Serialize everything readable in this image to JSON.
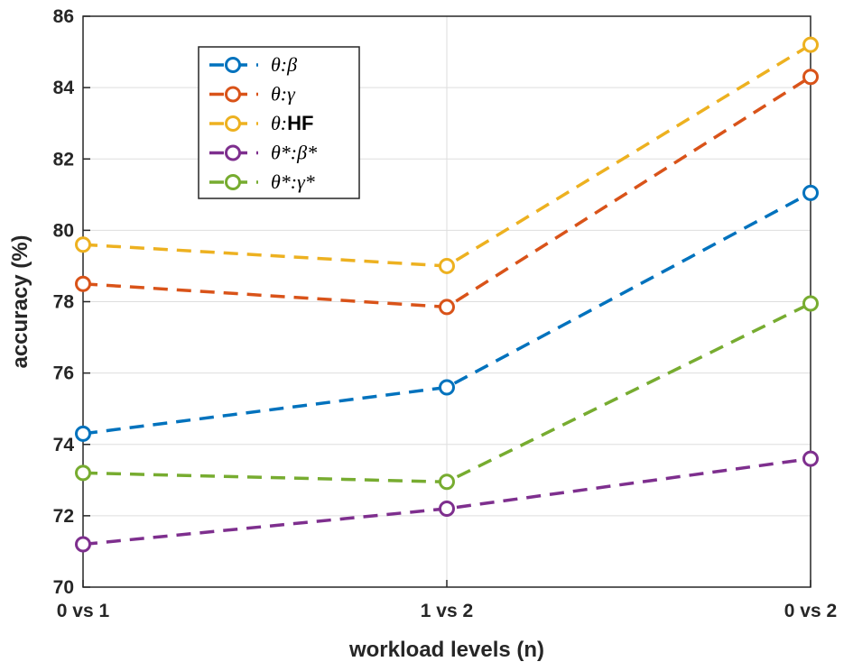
{
  "chart_data": {
    "type": "line",
    "categories": [
      "0 vs 1",
      "1 vs 2",
      "0 vs 2"
    ],
    "xlabel": "workload levels (n)",
    "ylabel": "accuracy (%)",
    "ylim": [
      70,
      86
    ],
    "yticks": [
      70,
      72,
      74,
      76,
      78,
      80,
      82,
      84,
      86
    ],
    "grid": true,
    "legend_position": "top-left",
    "series": [
      {
        "name": "θ:β",
        "legend": [
          {
            "t": "θ:β"
          }
        ],
        "color": "#0072BD",
        "values": [
          74.3,
          75.6,
          81.05
        ]
      },
      {
        "name": "θ:γ",
        "legend": [
          {
            "t": "θ:γ"
          }
        ],
        "color": "#D95319",
        "values": [
          78.5,
          77.85,
          84.3
        ]
      },
      {
        "name": "θ:HF",
        "legend": [
          {
            "t": "θ:"
          },
          {
            "t": "HF",
            "plain": true
          }
        ],
        "color": "#EDB120",
        "values": [
          79.6,
          79.0,
          85.2
        ]
      },
      {
        "name": "θ*:β*",
        "legend": [
          {
            "t": "θ*:β*"
          }
        ],
        "color": "#7E2F8E",
        "values": [
          71.2,
          72.2,
          73.6
        ]
      },
      {
        "name": "θ*:γ*",
        "legend": [
          {
            "t": "θ*:γ*"
          }
        ],
        "color": "#77AC30",
        "values": [
          73.2,
          72.95,
          77.95
        ]
      }
    ]
  }
}
